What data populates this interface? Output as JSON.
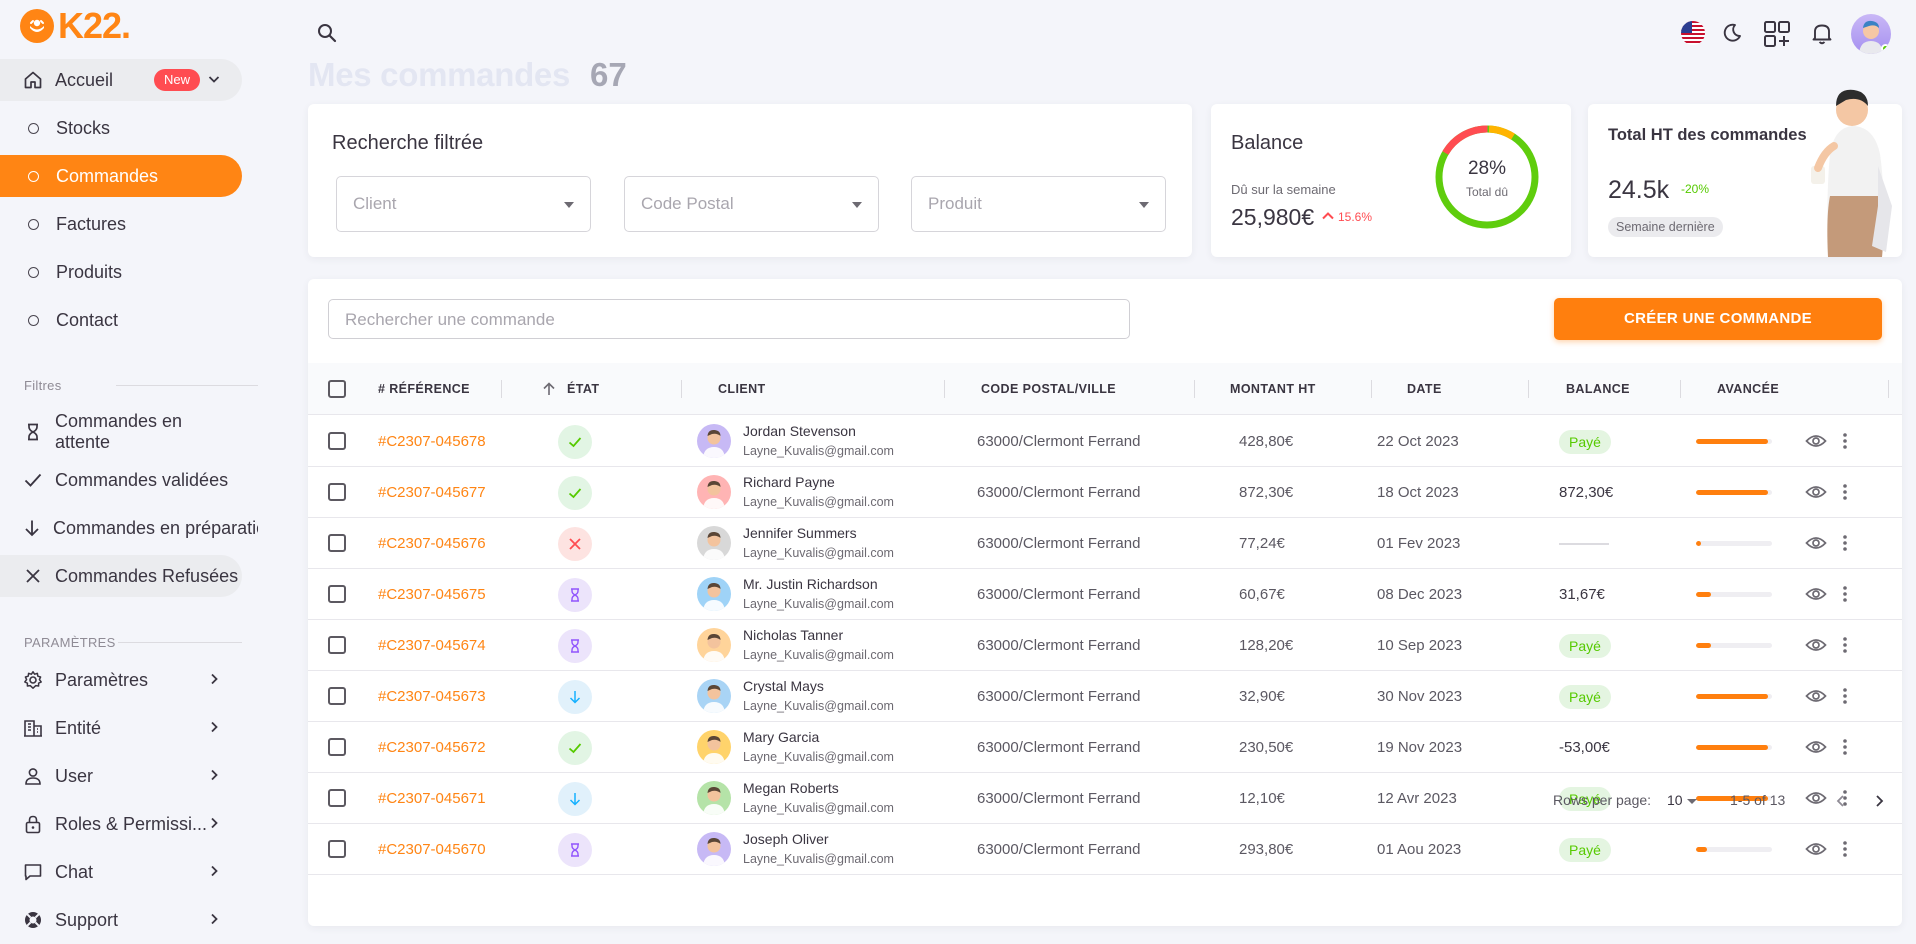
{
  "brand": {
    "name": "K22.",
    "color": "#ff8514"
  },
  "sidebar": {
    "home": {
      "label": "Accueil",
      "badge": "New",
      "icon": "home-icon"
    },
    "menu": [
      {
        "label": "Stocks"
      },
      {
        "label": "Commandes",
        "active": true
      },
      {
        "label": "Factures"
      },
      {
        "label": "Produits"
      },
      {
        "label": "Contact"
      }
    ],
    "filters_title": "Filtres",
    "filters": [
      {
        "label": "Commandes en attente",
        "icon": "hourglass-icon"
      },
      {
        "label": "Commandes validées",
        "icon": "check-icon"
      },
      {
        "label": "Commandes en préparatio",
        "icon": "arrow-down-icon"
      },
      {
        "label": "Commandes Refusées",
        "icon": "close-icon"
      }
    ],
    "settings_title": "PARAMÈTRES",
    "settings": [
      {
        "label": "Paramètres",
        "icon": "gear-icon"
      },
      {
        "label": "Entité",
        "icon": "building-icon"
      },
      {
        "label": "User",
        "icon": "user-icon"
      },
      {
        "label": "Roles & Permissi...",
        "icon": "lock-icon"
      },
      {
        "label": "Chat",
        "icon": "chat-icon"
      },
      {
        "label": "Support",
        "icon": "lifebuoy-icon"
      }
    ]
  },
  "page": {
    "title": "Mes commandes",
    "count": "67"
  },
  "filter_card": {
    "title": "Recherche filtrée",
    "client_placeholder": "Client",
    "postal_placeholder": "Code Postal",
    "product_placeholder": "Produit"
  },
  "balance_card": {
    "title": "Balance",
    "label": "Dû sur la semaine",
    "value": "25,980€",
    "trend": "15.6%",
    "ring_percent": "28%",
    "ring_label": "Total dû",
    "ring_fraction": 0.28
  },
  "total_card": {
    "title": "Total HT des commandes",
    "value": "24.5k",
    "trend": "-20%",
    "period": "Semaine dernière"
  },
  "orders": {
    "search_placeholder": "Rechercher une commande",
    "create_label": "CRÉER UNE COMMANDE",
    "columns": {
      "reference": "# RÉFÉRENCE",
      "state": "ÉTAT",
      "client": "CLIENT",
      "postal": "CODE POSTAL/VILLE",
      "amount": "MONTANT HT",
      "date": "DATE",
      "balance": "BALANCE",
      "progress": "AVANCÉE"
    },
    "rows": [
      {
        "ref": "#C2307-045678",
        "state": "validated",
        "name": "Jordan Stevenson",
        "email": "Layne_Kuvalis@gmail.com",
        "postal": "63000/Clermont Ferrand",
        "amount": "428,80€",
        "date": "22 Oct 2023",
        "balance": "Payé",
        "balance_type": "paid",
        "progress": 0.95,
        "avatar": "#c7b9f5"
      },
      {
        "ref": "#C2307-045677",
        "state": "validated",
        "name": "Richard Payne",
        "email": "Layne_Kuvalis@gmail.com",
        "postal": "63000/Clermont Ferrand",
        "amount": "872,30€",
        "date": "18 Oct 2023",
        "balance": "872,30€",
        "balance_type": "text",
        "progress": 0.95,
        "avatar": "#ffb4b4"
      },
      {
        "ref": "#C2307-045676",
        "state": "refused",
        "name": "Jennifer Summers",
        "email": "Layne_Kuvalis@gmail.com",
        "postal": "63000/Clermont Ferrand",
        "amount": "77,24€",
        "date": "01 Fev 2023",
        "balance": "",
        "balance_type": "none",
        "progress": 0.06,
        "avatar": "#d8d8d8"
      },
      {
        "ref": "#C2307-045675",
        "state": "waiting",
        "name": "Mr. Justin Richardson",
        "email": "Layne_Kuvalis@gmail.com",
        "postal": "63000/Clermont Ferrand",
        "amount": "60,67€",
        "date": "08 Dec 2023",
        "balance": "31,67€",
        "balance_type": "text",
        "progress": 0.2,
        "avatar": "#9fd3f7"
      },
      {
        "ref": "#C2307-045674",
        "state": "waiting",
        "name": "Nicholas Tanner",
        "email": "Layne_Kuvalis@gmail.com",
        "postal": "63000/Clermont Ferrand",
        "amount": "128,20€",
        "date": "10 Sep 2023",
        "balance": "Payé",
        "balance_type": "paid",
        "progress": 0.2,
        "avatar": "#ffd49a"
      },
      {
        "ref": "#C2307-045673",
        "state": "preparing",
        "name": "Crystal Mays",
        "email": "Layne_Kuvalis@gmail.com",
        "postal": "63000/Clermont Ferrand",
        "amount": "32,90€",
        "date": "30 Nov 2023",
        "balance": "Payé",
        "balance_type": "paid",
        "progress": 0.95,
        "avatar": "#a9d4f5"
      },
      {
        "ref": "#C2307-045672",
        "state": "validated",
        "name": "Mary Garcia",
        "email": "Layne_Kuvalis@gmail.com",
        "postal": "63000/Clermont Ferrand",
        "amount": "230,50€",
        "date": "19 Nov 2023",
        "balance": "-53,00€",
        "balance_type": "text",
        "progress": 0.95,
        "avatar": "#ffd36b"
      },
      {
        "ref": "#C2307-045671",
        "state": "preparing",
        "name": "Megan Roberts",
        "email": "Layne_Kuvalis@gmail.com",
        "postal": "63000/Clermont Ferrand",
        "amount": "12,10€",
        "date": "12 Avr 2023",
        "balance": "Payé",
        "balance_type": "paid",
        "progress": 0.95,
        "avatar": "#b5e3a8"
      },
      {
        "ref": "#C2307-045670",
        "state": "waiting",
        "name": "Joseph Oliver",
        "email": "Layne_Kuvalis@gmail.com",
        "postal": "63000/Clermont Ferrand",
        "amount": "293,80€",
        "date": "01 Aou 2023",
        "balance": "Payé",
        "balance_type": "paid",
        "progress": 0.15,
        "avatar": "#c7b9f5"
      }
    ],
    "footer": {
      "rows_per_page_label": "Rows per page:",
      "rows_per_page": "10",
      "range": "1-5 of 13"
    }
  },
  "colors": {
    "accent": "#ff8514",
    "success": "#56ca00",
    "error": "#ff4c51",
    "wait": "#9155fd",
    "info": "#16b1ff"
  }
}
